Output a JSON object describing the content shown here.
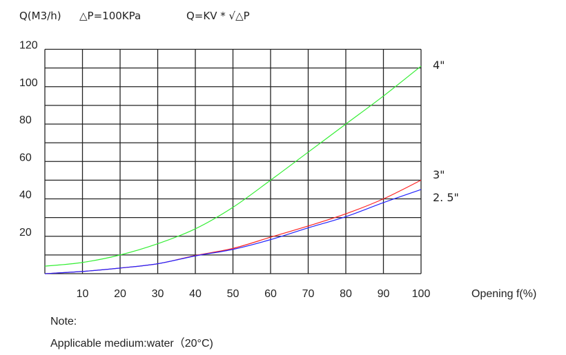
{
  "header": {
    "unit": "Q(M3/h)",
    "pressure": "△P=100KPa",
    "formula": "Q=KV * √△P"
  },
  "chart_data": {
    "type": "line",
    "title": "",
    "xlabel": "Opening f(%)",
    "ylabel": "Q(M3/h)",
    "xlim": [
      0,
      100
    ],
    "ylim": [
      0,
      120
    ],
    "grid": true,
    "x_ticks": [
      10,
      20,
      30,
      40,
      50,
      60,
      70,
      80,
      90,
      100
    ],
    "y_ticks": [
      20,
      40,
      60,
      80,
      100,
      120
    ],
    "x": [
      0,
      10,
      20,
      30,
      40,
      50,
      60,
      70,
      80,
      90,
      100
    ],
    "series": [
      {
        "name": "4\"",
        "color": "#33ee33",
        "values": [
          4,
          6,
          10,
          16,
          24,
          35.5,
          50,
          65,
          80,
          95,
          111
        ]
      },
      {
        "name": "3\"",
        "color": "#ff2222",
        "values": [
          0,
          1.2,
          3,
          5.3,
          9.7,
          13.5,
          19.5,
          25.5,
          32,
          40,
          50
        ]
      },
      {
        "name": "2. 5\"",
        "color": "#2222ff",
        "values": [
          0,
          1.2,
          3,
          5.3,
          9.5,
          13,
          18.2,
          24.5,
          30.5,
          38,
          45
        ]
      }
    ],
    "legend": "right-of-line-ends"
  },
  "note": {
    "title": "Note:",
    "text": "Applicable medium:water（20°C)"
  }
}
